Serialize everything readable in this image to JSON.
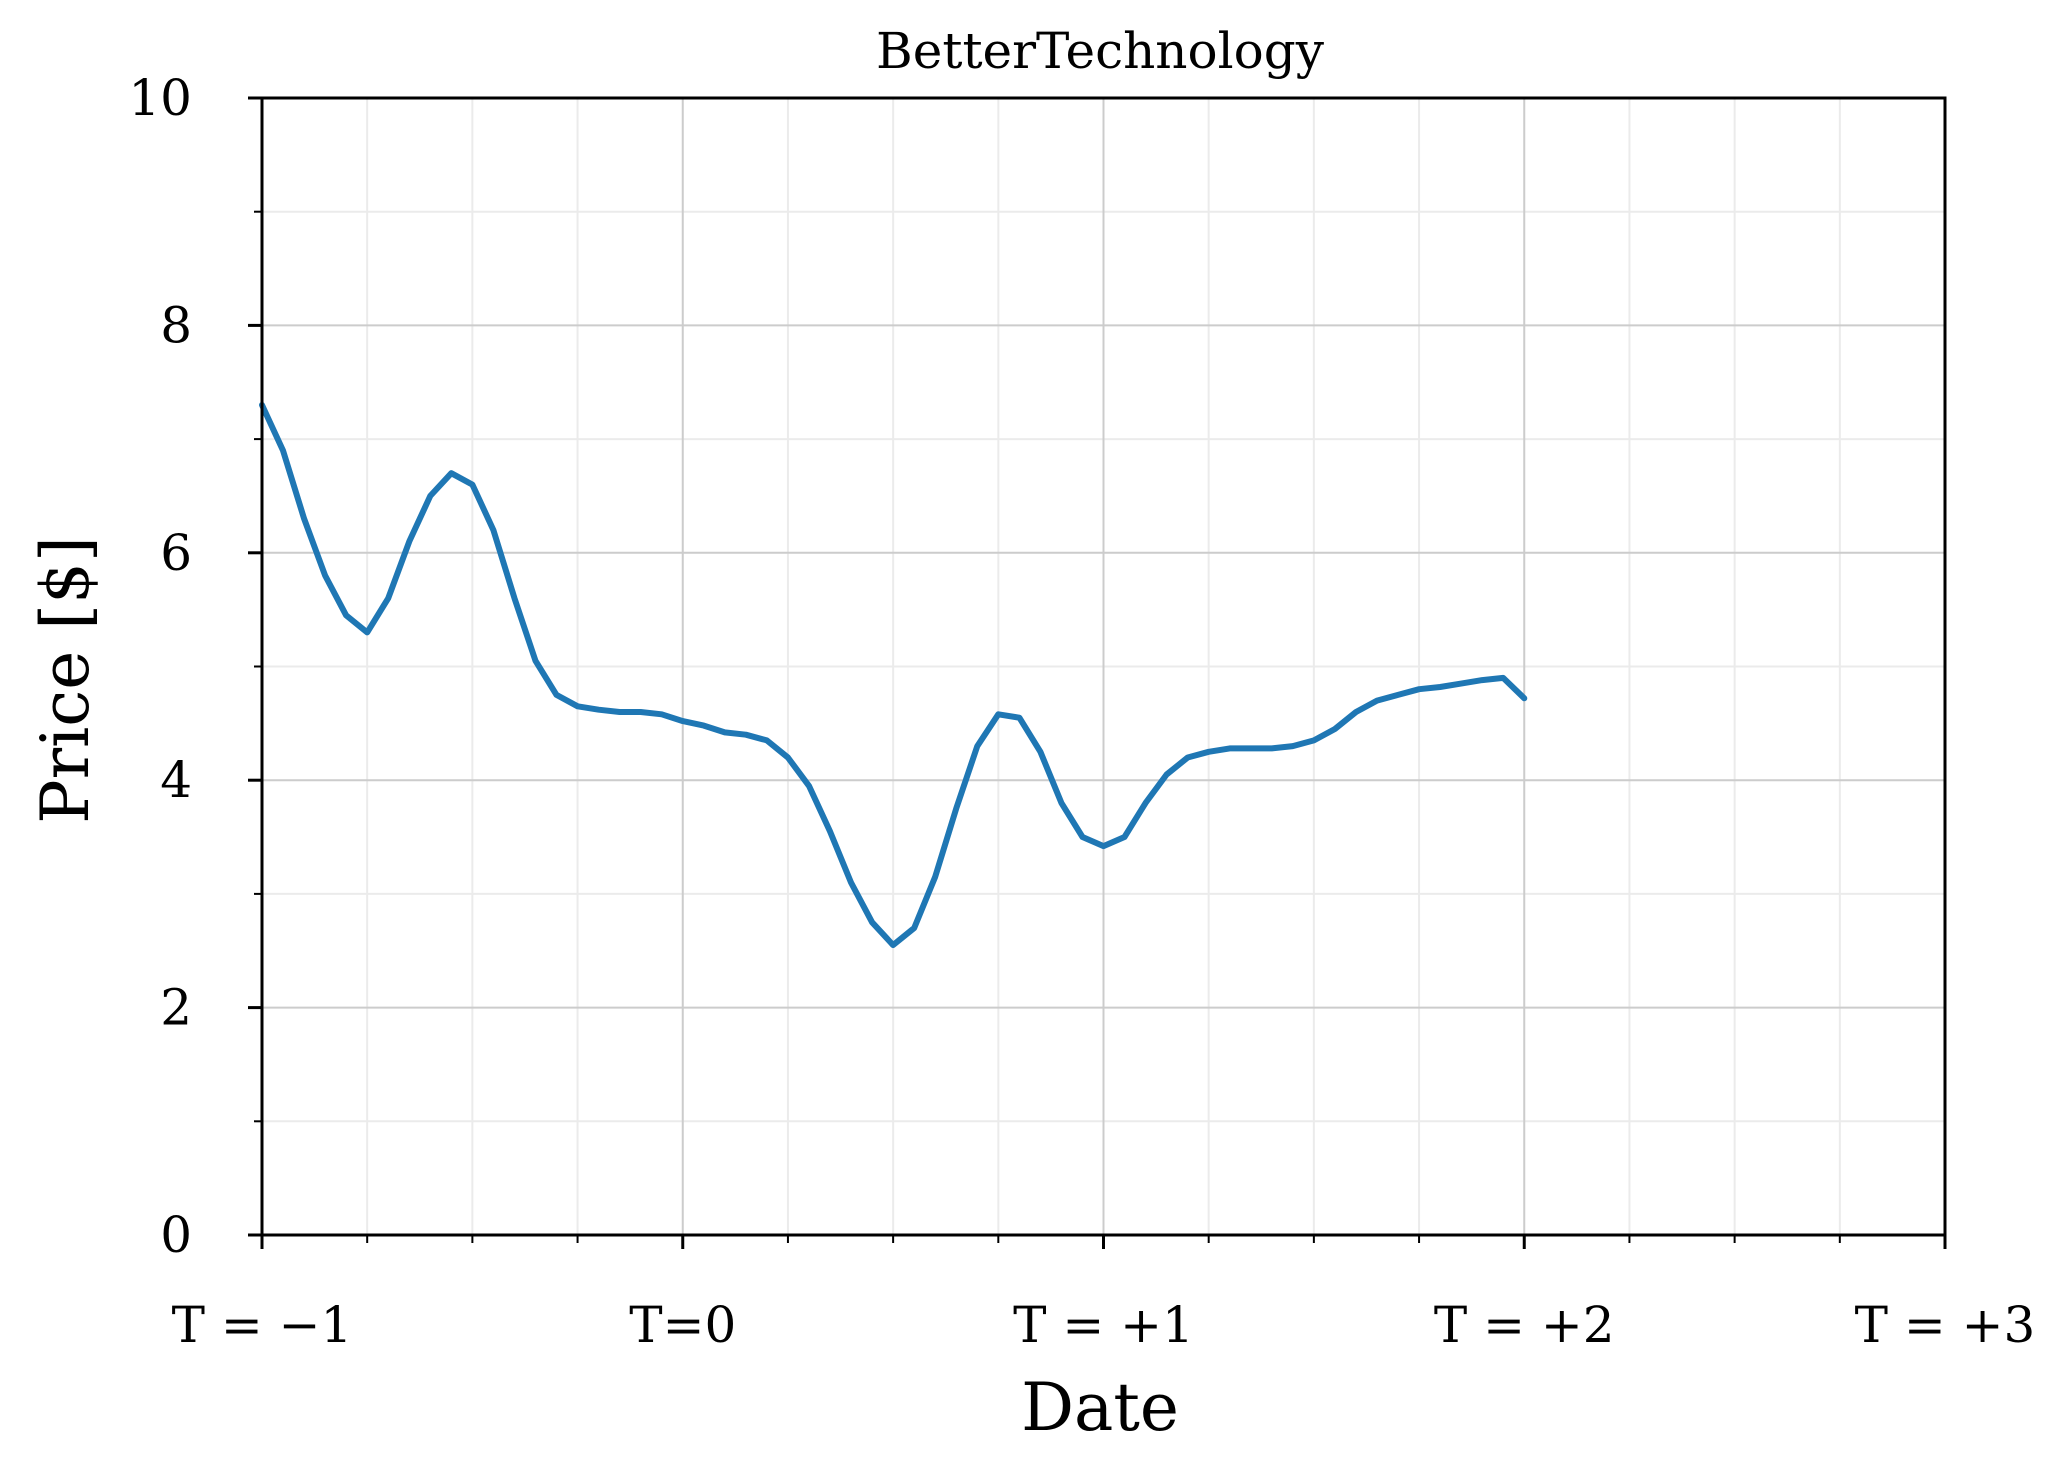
{
  "chart_data": {
    "type": "line",
    "title": "BetterTechnology",
    "xlabel": "Date",
    "ylabel": "Price [$]",
    "xlim": [
      -1,
      3
    ],
    "ylim": [
      0,
      10
    ],
    "grid": true,
    "x_ticks": [
      {
        "value": -1,
        "label": "T = −1"
      },
      {
        "value": 0,
        "label": "T=0"
      },
      {
        "value": 1,
        "label": "T = +1"
      },
      {
        "value": 2,
        "label": "T = +2"
      },
      {
        "value": 3,
        "label": "T = +3"
      }
    ],
    "y_ticks": [
      {
        "value": 0,
        "label": "0"
      },
      {
        "value": 2,
        "label": "2"
      },
      {
        "value": 4,
        "label": "4"
      },
      {
        "value": 6,
        "label": "6"
      },
      {
        "value": 8,
        "label": "8"
      },
      {
        "value": 10,
        "label": "10"
      }
    ],
    "series": [
      {
        "color": "#1f77b4",
        "x": [
          -1.0,
          -0.95,
          -0.9,
          -0.85,
          -0.8,
          -0.75,
          -0.7,
          -0.65,
          -0.6,
          -0.55,
          -0.5,
          -0.45,
          -0.4,
          -0.35,
          -0.3,
          -0.25,
          -0.2,
          -0.15,
          -0.1,
          -0.05,
          0.0,
          0.05,
          0.1,
          0.15,
          0.2,
          0.25,
          0.3,
          0.35,
          0.4,
          0.45,
          0.5,
          0.55,
          0.6,
          0.65,
          0.7,
          0.75,
          0.8,
          0.85,
          0.9,
          0.95,
          1.0,
          1.05,
          1.1,
          1.15,
          1.2,
          1.25,
          1.3,
          1.35,
          1.4,
          1.45,
          1.5,
          1.55,
          1.6,
          1.65,
          1.7,
          1.75,
          1.8,
          1.85,
          1.9,
          1.95,
          2.0
        ],
        "y": [
          7.3,
          6.9,
          6.3,
          5.8,
          5.45,
          5.3,
          5.6,
          6.1,
          6.5,
          6.7,
          6.6,
          6.2,
          5.6,
          5.05,
          4.75,
          4.65,
          4.62,
          4.6,
          4.6,
          4.58,
          4.52,
          4.48,
          4.42,
          4.4,
          4.35,
          4.2,
          3.95,
          3.55,
          3.1,
          2.75,
          2.55,
          2.7,
          3.15,
          3.75,
          4.3,
          4.58,
          4.55,
          4.25,
          3.8,
          3.5,
          3.42,
          3.5,
          3.8,
          4.05,
          4.2,
          4.25,
          4.28,
          4.28,
          4.28,
          4.3,
          4.35,
          4.45,
          4.6,
          4.7,
          4.75,
          4.8,
          4.82,
          4.85,
          4.88,
          4.9,
          4.72
        ]
      }
    ]
  }
}
